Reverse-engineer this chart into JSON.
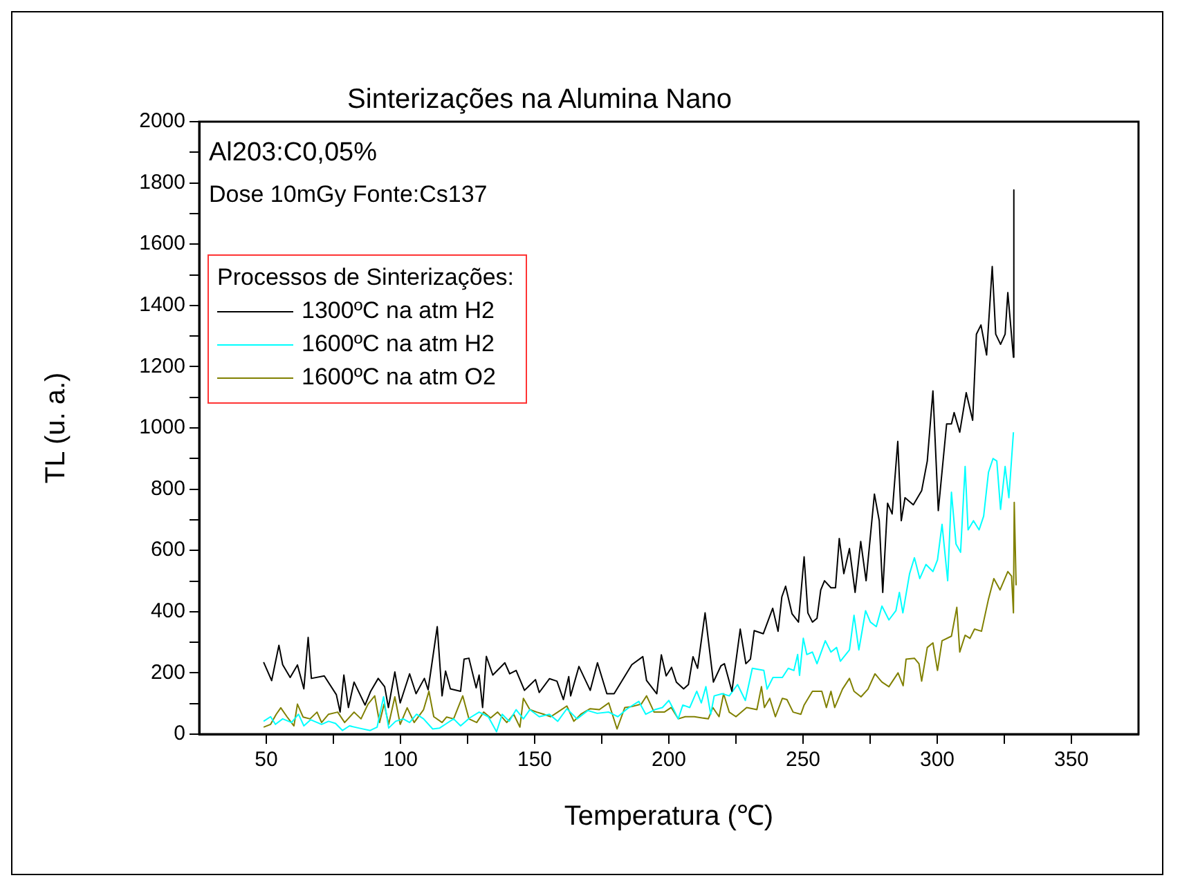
{
  "chart_data": {
    "type": "line",
    "title": "Sinterizações na Alumina Nano",
    "xlabel": "Temperatura (℃)",
    "ylabel": "TL (u. a.)",
    "legend_title": "Processos de Sinterizações:",
    "legend": "top left",
    "annotations": [
      "Al203:C0,05%",
      "Dose 10mGy Fonte:Cs137"
    ],
    "xlim": [
      25,
      375
    ],
    "xticks": [
      50,
      {
        "value": 75,
        "label": null
      },
      100,
      {
        "value": 125,
        "label": null
      },
      150,
      {
        "value": 175,
        "label": null
      },
      200,
      {
        "value": 225,
        "label": null
      },
      250,
      {
        "value": 275,
        "label": null
      },
      300,
      {
        "value": 325,
        "label": null
      },
      350
    ],
    "ylim": [
      0,
      2000
    ],
    "yticks": [
      0,
      {
        "value": 100,
        "label": null
      },
      200,
      {
        "value": 300,
        "label": null
      },
      400,
      {
        "value": 500,
        "label": null
      },
      600,
      {
        "value": 700,
        "label": null
      },
      800,
      {
        "value": 900,
        "label": null
      },
      1000,
      {
        "value": 1100,
        "label": null
      },
      1200,
      {
        "value": 1300,
        "label": null
      },
      1400,
      {
        "value": 1500,
        "label": null
      },
      1600,
      {
        "value": 1700,
        "label": null
      },
      1800,
      {
        "value": 1900,
        "label": null
      },
      2000
    ],
    "series": [
      {
        "name": "1300ºC na atm H2",
        "color": "#000000",
        "x": [
          49.0,
          52.0,
          54.7,
          56.1,
          58.9,
          61.6,
          64.0,
          65.6,
          66.8,
          71.6,
          76.1,
          77.5,
          78.9,
          80.6,
          82.7,
          86.8,
          88.9,
          91.7,
          94.1,
          95.5,
          97.9,
          99.9,
          103.4,
          105.8,
          108.9,
          110.3,
          113.7,
          115.5,
          116.8,
          118.6,
          122.4,
          123.7,
          125.5,
          128.2,
          129.3,
          130.6,
          132.0,
          134.4,
          138.9,
          140.7,
          143.1,
          146.2,
          150.3,
          151.7,
          155.5,
          158.3,
          160.7,
          162.7,
          163.4,
          166.5,
          170.7,
          173.4,
          176.9,
          179.6,
          186.2,
          190.3,
          191.7,
          195.5,
          197.2,
          199.0,
          201.0,
          202.8,
          205.5,
          207.3,
          209.0,
          210.7,
          213.5,
          216.6,
          219.4,
          220.7,
          223.5,
          226.6,
          228.7,
          230.4,
          231.8,
          235.2,
          238.7,
          240.7,
          242.1,
          243.5,
          245.9,
          248.3,
          250.4,
          251.8,
          253.5,
          255.2,
          256.6,
          258.0,
          260.4,
          262.1,
          263.5,
          265.2,
          267.3,
          269.4,
          271.5,
          273.5,
          276.6,
          278.4,
          279.7,
          281.5,
          283.2,
          285.3,
          286.6,
          288.0,
          291.1,
          294.2,
          296.3,
          298.4,
          300.4,
          303.5,
          305.3,
          306.3,
          308.4,
          310.8,
          313.2,
          314.6,
          316.3,
          318.4,
          320.5,
          321.8,
          323.6,
          325.3,
          326.3,
          328.4,
          328.5,
          328.6
        ],
        "values": [
          235,
          175,
          290,
          227,
          185,
          226,
          148,
          316,
          182,
          190,
          129,
          72,
          193,
          87,
          170,
          95,
          140,
          182,
          155,
          87,
          203,
          102,
          197,
          132,
          182,
          145,
          351,
          125,
          206,
          148,
          140,
          245,
          248,
          151,
          193,
          87,
          254,
          193,
          233,
          197,
          208,
          143,
          178,
          136,
          181,
          173,
          113,
          188,
          125,
          221,
          143,
          233,
          132,
          132,
          227,
          253,
          175,
          132,
          259,
          190,
          218,
          170,
          148,
          162,
          253,
          215,
          396,
          170,
          223,
          230,
          140,
          343,
          230,
          245,
          338,
          328,
          411,
          336,
          448,
          483,
          393,
          366,
          579,
          396,
          366,
          378,
          471,
          501,
          478,
          478,
          639,
          524,
          606,
          463,
          629,
          501,
          784,
          697,
          463,
          754,
          719,
          956,
          697,
          772,
          749,
          795,
          892,
          1121,
          730,
          1013,
          1013,
          1050,
          986,
          1115,
          1025,
          1306,
          1336,
          1238,
          1527,
          1306,
          1273,
          1306,
          1442,
          1231,
          1777,
          1231
        ]
      },
      {
        "name": "1600ºC na atm H2",
        "color": "#00ffff",
        "x": [
          49.0,
          51.6,
          53.4,
          56.1,
          59.4,
          62.0,
          64.0,
          66.5,
          70.6,
          73.2,
          75.8,
          78.4,
          81.0,
          84.4,
          88.7,
          91.3,
          93.7,
          95.6,
          98.2,
          101.0,
          103.4,
          106.0,
          108.6,
          112.0,
          114.6,
          117.2,
          119.8,
          122.4,
          125.8,
          129.3,
          132.7,
          135.8,
          137.9,
          140.5,
          143.1,
          145.8,
          148.2,
          151.7,
          155.5,
          158.6,
          162.0,
          165.8,
          169.8,
          173.3,
          177.6,
          181.0,
          184.5,
          188.8,
          191.4,
          194.8,
          197.6,
          200.0,
          201.8,
          203.5,
          205.2,
          207.8,
          210.4,
          212.1,
          213.8,
          215.6,
          216.9,
          219.9,
          222.5,
          225.6,
          228.5,
          231.1,
          235.4,
          236.6,
          238.8,
          242.3,
          244.5,
          246.6,
          248.0,
          248.7,
          250.1,
          251.4,
          253.5,
          255.2,
          258.3,
          260.4,
          262.5,
          263.9,
          267.3,
          269.0,
          270.8,
          273.3,
          275.1,
          277.3,
          279.4,
          282.0,
          284.6,
          285.9,
          287.2,
          289.7,
          291.5,
          293.5,
          295.8,
          298.4,
          300.1,
          301.8,
          303.9,
          305.3,
          307.0,
          308.7,
          310.4,
          311.5,
          313.5,
          315.6,
          317.3,
          319.1,
          320.8,
          322.2,
          323.6,
          325.3,
          326.7,
          328.4
        ],
        "values": [
          42,
          57,
          32,
          50,
          38,
          65,
          27,
          47,
          32,
          42,
          35,
          12,
          27,
          20,
          12,
          23,
          122,
          20,
          42,
          50,
          38,
          65,
          50,
          17,
          20,
          35,
          50,
          27,
          53,
          72,
          57,
          8,
          65,
          42,
          80,
          50,
          80,
          57,
          65,
          42,
          83,
          50,
          77,
          68,
          72,
          57,
          83,
          107,
          65,
          80,
          87,
          110,
          80,
          50,
          95,
          87,
          140,
          102,
          155,
          65,
          125,
          132,
          125,
          162,
          110,
          215,
          208,
          147,
          185,
          185,
          215,
          208,
          260,
          192,
          313,
          260,
          268,
          230,
          305,
          268,
          283,
          238,
          275,
          388,
          275,
          403,
          366,
          351,
          418,
          373,
          403,
          463,
          396,
          524,
          576,
          508,
          554,
          531,
          569,
          685,
          501,
          790,
          621,
          594,
          874,
          667,
          697,
          667,
          712,
          855,
          900,
          892,
          734,
          874,
          772,
          986
        ]
      },
      {
        "name": "1600ºC na atm O2",
        "color": "#808000",
        "x": [
          49.0,
          51.6,
          53.7,
          55.4,
          57.7,
          60.3,
          61.6,
          63.7,
          66.3,
          68.9,
          70.6,
          73.2,
          76.6,
          79.2,
          82.7,
          85.3,
          87.9,
          90.4,
          92.2,
          93.9,
          95.6,
          97.9,
          99.9,
          102.5,
          105.1,
          108.6,
          110.6,
          112.4,
          115.5,
          117.2,
          119.8,
          123.2,
          125.5,
          128.4,
          131.0,
          133.6,
          136.2,
          139.6,
          142.2,
          144.5,
          145.8,
          148.2,
          150.8,
          153.4,
          156.0,
          158.6,
          162.0,
          164.6,
          167.2,
          170.7,
          174.1,
          177.6,
          180.7,
          183.6,
          186.2,
          189.7,
          191.7,
          194.5,
          198.3,
          200.9,
          203.5,
          206.1,
          209.5,
          214.7,
          216.4,
          218.7,
          220.4,
          222.5,
          225.0,
          229.0,
          232.8,
          234.5,
          235.6,
          237.6,
          239.7,
          242.3,
          244.0,
          246.3,
          249.2,
          250.4,
          253.5,
          257.0,
          258.7,
          260.4,
          261.8,
          264.7,
          267.3,
          269.0,
          271.6,
          274.2,
          276.8,
          279.4,
          282.0,
          285.4,
          287.3,
          288.4,
          291.5,
          293.2,
          294.2,
          296.3,
          298.4,
          300.1,
          301.8,
          305.3,
          307.3,
          308.4,
          310.4,
          312.2,
          313.9,
          316.5,
          319.1,
          321.1,
          323.4,
          326.3,
          327.7,
          328.4,
          328.7,
          329.4
        ],
        "values": [
          23,
          32,
          65,
          86,
          57,
          27,
          98,
          56,
          50,
          72,
          38,
          65,
          72,
          38,
          72,
          50,
          98,
          125,
          38,
          98,
          32,
          122,
          32,
          86,
          38,
          80,
          140,
          57,
          38,
          56,
          50,
          125,
          50,
          38,
          72,
          53,
          72,
          38,
          65,
          23,
          117,
          80,
          72,
          65,
          57,
          72,
          92,
          42,
          65,
          83,
          80,
          102,
          17,
          87,
          90,
          98,
          125,
          72,
          72,
          87,
          50,
          57,
          57,
          50,
          87,
          57,
          132,
          72,
          57,
          87,
          80,
          155,
          87,
          117,
          57,
          117,
          113,
          72,
          65,
          95,
          140,
          140,
          87,
          140,
          87,
          147,
          182,
          140,
          122,
          147,
          197,
          170,
          155,
          200,
          158,
          245,
          248,
          230,
          173,
          283,
          298,
          208,
          305,
          320,
          414,
          268,
          323,
          313,
          343,
          336,
          441,
          508,
          471,
          531,
          516,
          396,
          757,
          486
        ]
      }
    ]
  }
}
